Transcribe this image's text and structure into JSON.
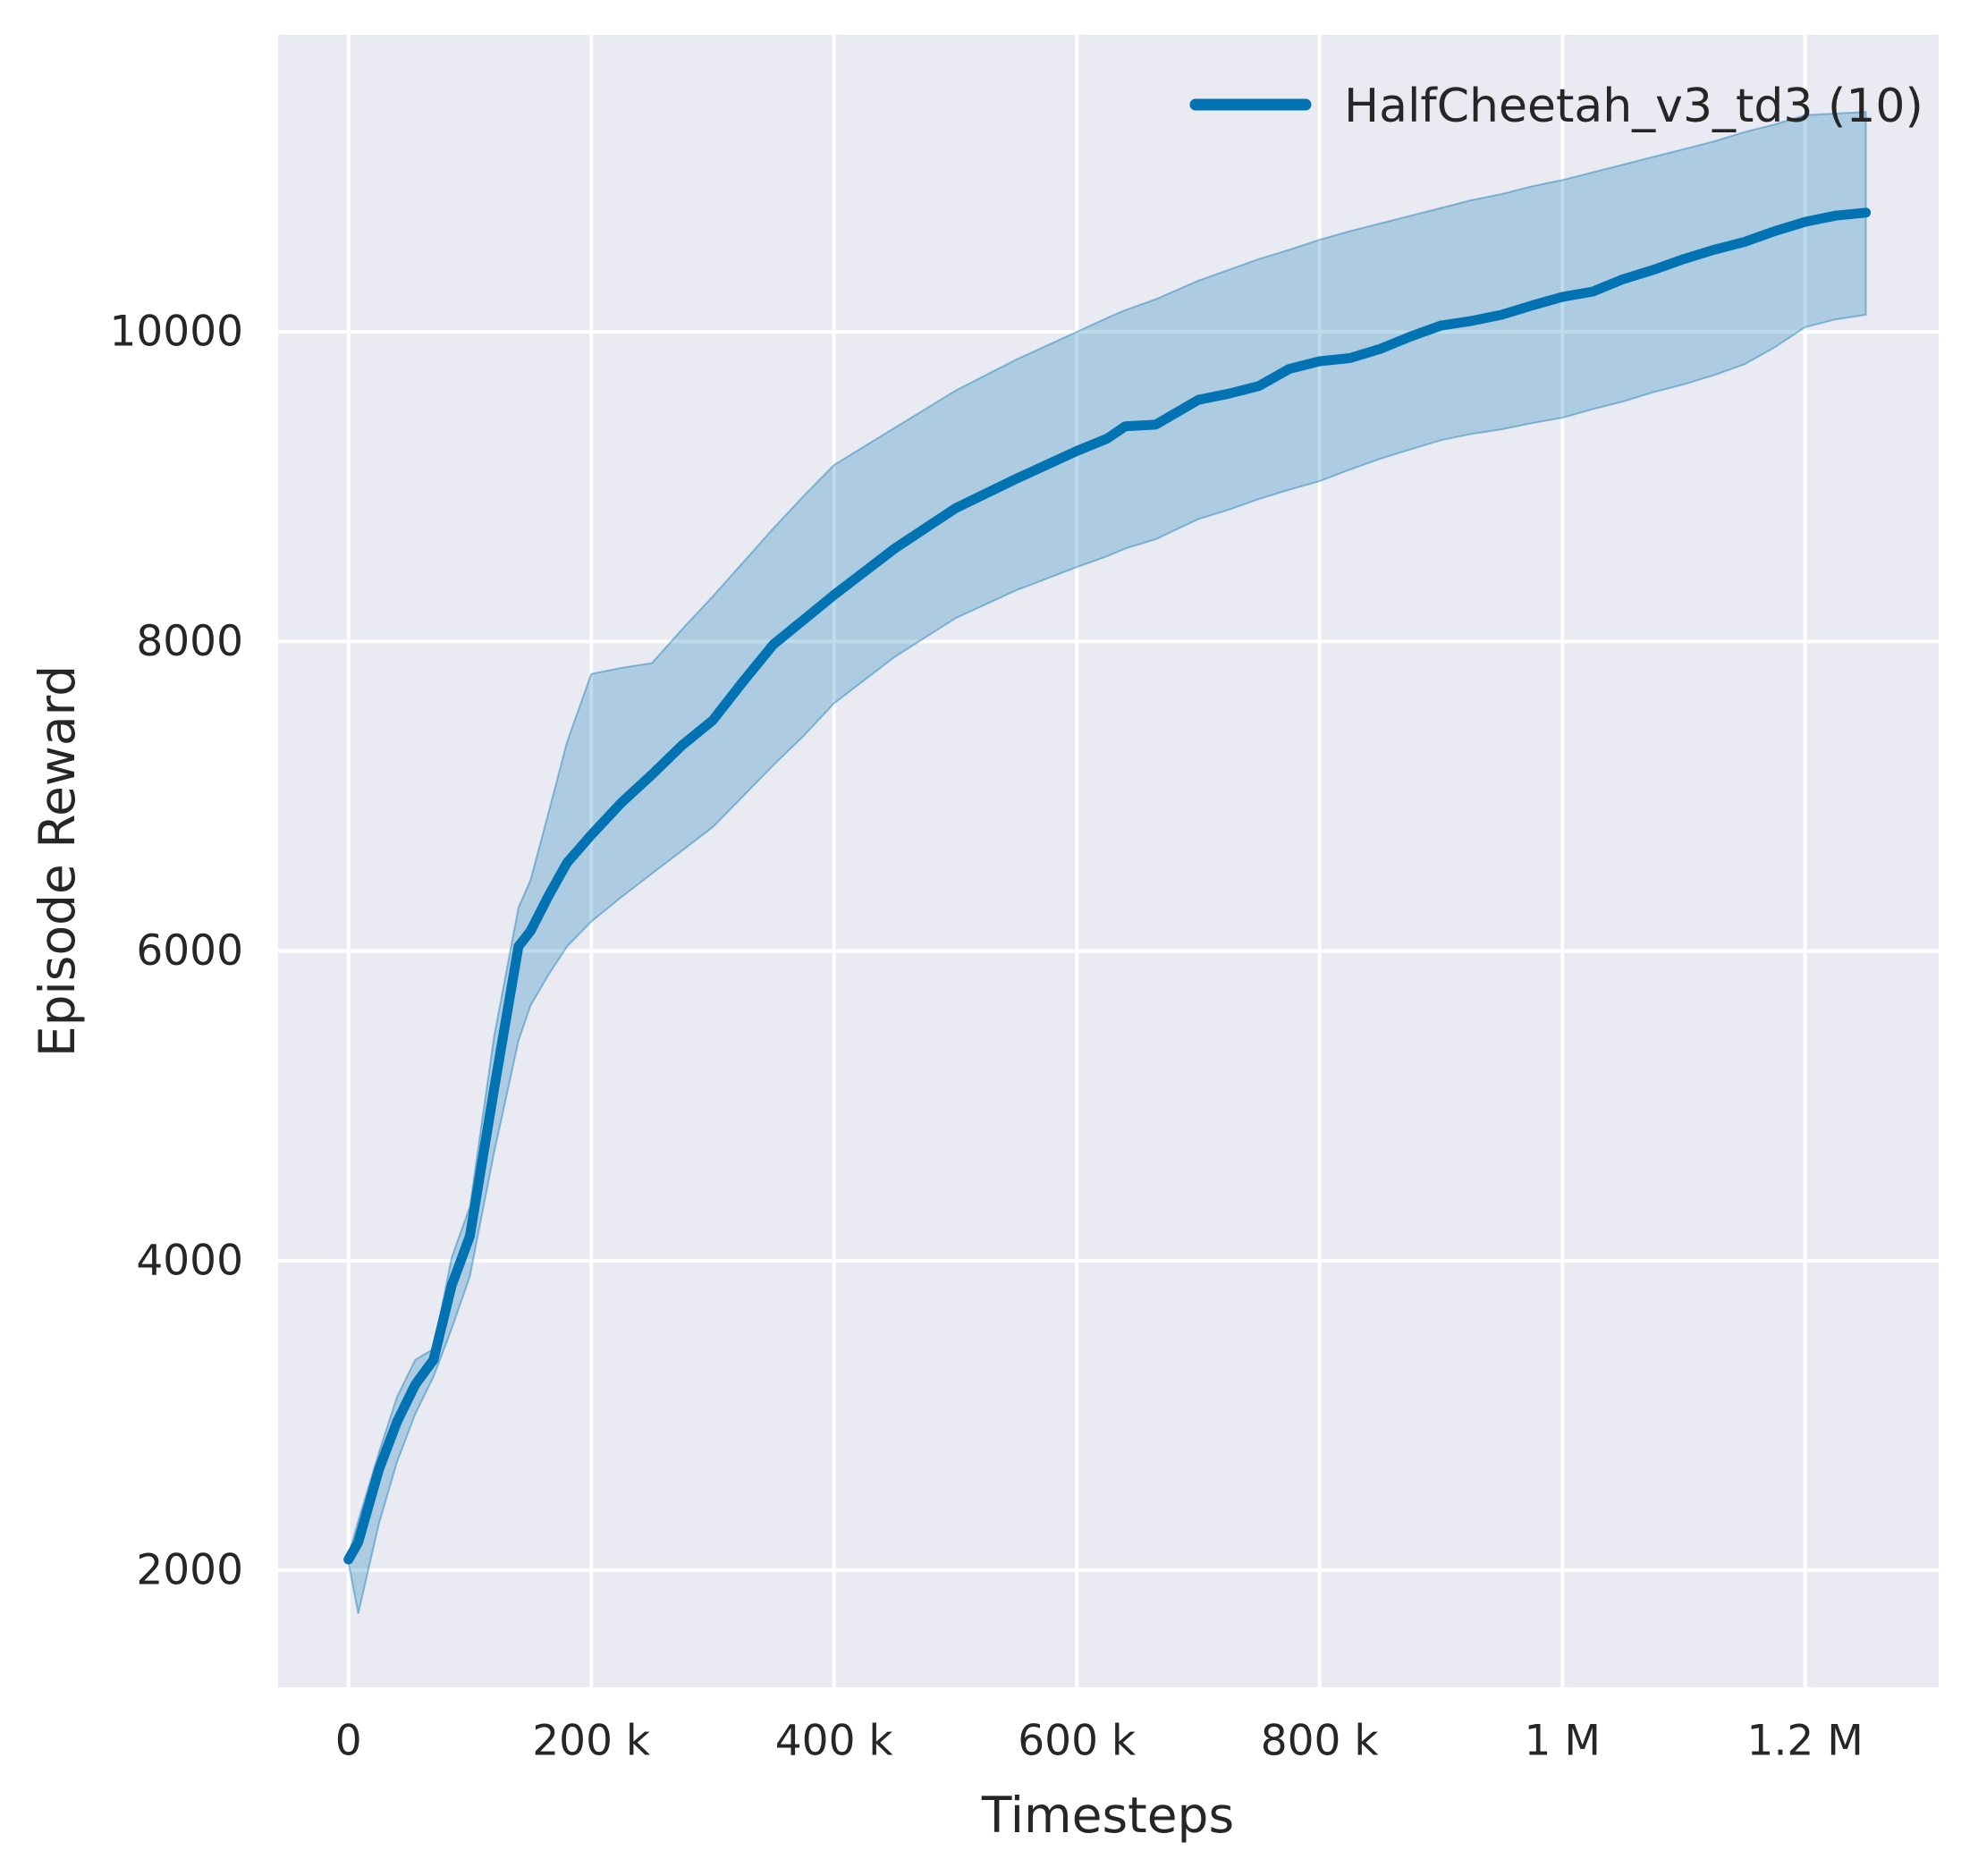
{
  "chart_data": {
    "type": "line",
    "title": "",
    "xlabel": "Timesteps",
    "ylabel": "Episode Reward",
    "grid": true,
    "legend_position": "upper right",
    "axes_bg": "#eaeaf2",
    "grid_color": "#ffffff",
    "text_color": "#262626",
    "xlim": [
      -58000,
      1310000
    ],
    "ylim": [
      1244,
      11918
    ],
    "xticks": [
      {
        "value": 0,
        "label": "0"
      },
      {
        "value": 200000,
        "label": "200 k"
      },
      {
        "value": 400000,
        "label": "400 k"
      },
      {
        "value": 600000,
        "label": "600 k"
      },
      {
        "value": 800000,
        "label": "800 k"
      },
      {
        "value": 1000000,
        "label": "1 M"
      },
      {
        "value": 1200000,
        "label": "1.2 M"
      }
    ],
    "yticks": [
      {
        "value": 2000,
        "label": "2000"
      },
      {
        "value": 4000,
        "label": "4000"
      },
      {
        "value": 6000,
        "label": "6000"
      },
      {
        "value": 8000,
        "label": "8000"
      },
      {
        "value": 10000,
        "label": "10000"
      }
    ],
    "series": [
      {
        "name": "HalfCheetah_v3_td3 (10)",
        "color": "#0173b2",
        "band_fill": "rgba(1,115,178,0.26)",
        "band_edge": "rgba(1,115,178,0.40)",
        "x": [
          0,
          8000,
          25000,
          40000,
          55000,
          70000,
          85000,
          100000,
          120000,
          140000,
          150000,
          165000,
          180000,
          200000,
          225000,
          250000,
          275000,
          300000,
          325000,
          350000,
          375000,
          400000,
          450000,
          500000,
          550000,
          600000,
          625000,
          640000,
          665000,
          700000,
          725000,
          750000,
          775000,
          800000,
          825000,
          850000,
          875000,
          900000,
          925000,
          950000,
          975000,
          1000000,
          1025000,
          1050000,
          1075000,
          1100000,
          1125000,
          1150000,
          1175000,
          1200000,
          1225000,
          1250000
        ],
        "mean": [
          2070,
          2180,
          2650,
          2960,
          3200,
          3360,
          3840,
          4160,
          5110,
          6030,
          6130,
          6360,
          6570,
          6750,
          6960,
          7140,
          7330,
          7490,
          7740,
          7980,
          8140,
          8300,
          8600,
          8860,
          9050,
          9230,
          9310,
          9390,
          9400,
          9560,
          9600,
          9650,
          9760,
          9810,
          9830,
          9890,
          9970,
          10040,
          10070,
          10110,
          10170,
          10225,
          10260,
          10340,
          10400,
          10470,
          10530,
          10580,
          10650,
          10710,
          10750,
          10770
        ],
        "lower": [
          2050,
          1720,
          2300,
          2700,
          3010,
          3250,
          3560,
          3900,
          4700,
          5420,
          5650,
          5850,
          6030,
          6190,
          6350,
          6500,
          6650,
          6800,
          7000,
          7200,
          7390,
          7600,
          7900,
          8150,
          8330,
          8480,
          8550,
          8600,
          8660,
          8790,
          8850,
          8920,
          8980,
          9035,
          9110,
          9180,
          9240,
          9300,
          9340,
          9370,
          9410,
          9445,
          9500,
          9550,
          9610,
          9660,
          9720,
          9790,
          9900,
          10030,
          10080,
          10110
        ],
        "upper": [
          2095,
          2320,
          2760,
          3120,
          3360,
          3430,
          4020,
          4350,
          5450,
          6280,
          6460,
          6900,
          7350,
          7790,
          7830,
          7860,
          8080,
          8290,
          8510,
          8730,
          8940,
          9140,
          9380,
          9620,
          9820,
          10000,
          10090,
          10140,
          10210,
          10330,
          10400,
          10470,
          10530,
          10595,
          10650,
          10700,
          10750,
          10800,
          10850,
          10890,
          10940,
          10980,
          11030,
          11080,
          11130,
          11180,
          11230,
          11290,
          11340,
          11400,
          11410,
          11420
        ]
      }
    ]
  },
  "legend": {
    "entry_label": "HalfCheetah_v3_td3 (10)"
  },
  "axis": {
    "x_label": "Timesteps",
    "y_label": "Episode Reward"
  }
}
